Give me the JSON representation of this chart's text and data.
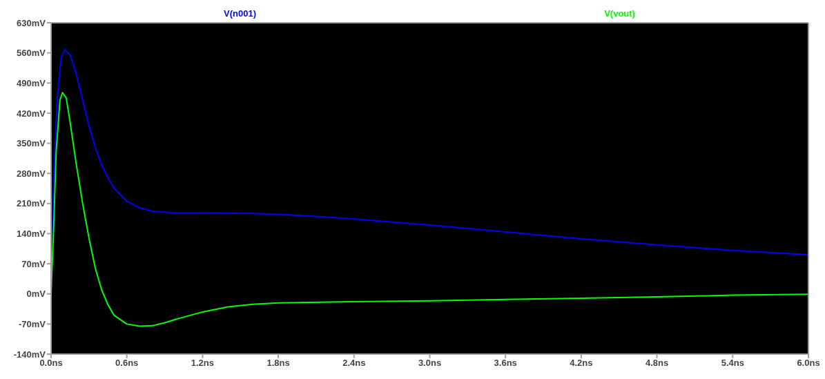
{
  "chart_data": {
    "type": "line",
    "legend": "top",
    "grid": false,
    "marker": "none",
    "line_style": "solid",
    "xlim": [
      0,
      6
    ],
    "xticks": [
      {
        "value": 0,
        "label": "0.0ns"
      },
      {
        "value": 0.6,
        "label": "0.6ns"
      },
      {
        "value": 1.2,
        "label": "1.2ns"
      },
      {
        "value": 1.8,
        "label": "1.8ns"
      },
      {
        "value": 2.4,
        "label": "2.4ns"
      },
      {
        "value": 3.0,
        "label": "3.0ns"
      },
      {
        "value": 3.6,
        "label": "3.6ns"
      },
      {
        "value": 4.2,
        "label": "4.2ns"
      },
      {
        "value": 4.8,
        "label": "4.8ns"
      },
      {
        "value": 5.4,
        "label": "5.4ns"
      },
      {
        "value": 6.0,
        "label": "6.0ns"
      }
    ],
    "ylim": [
      -140,
      630
    ],
    "yticks": [
      {
        "value": -140,
        "label": "-140mV"
      },
      {
        "value": -70,
        "label": "-70mV"
      },
      {
        "value": 0,
        "label": "0mV"
      },
      {
        "value": 70,
        "label": "70mV"
      },
      {
        "value": 140,
        "label": "140mV"
      },
      {
        "value": 210,
        "label": "210mV"
      },
      {
        "value": 280,
        "label": "280mV"
      },
      {
        "value": 350,
        "label": "350mV"
      },
      {
        "value": 420,
        "label": "420mV"
      },
      {
        "value": 490,
        "label": "490mV"
      },
      {
        "value": 560,
        "label": "560mV"
      },
      {
        "value": 630,
        "label": "630mV"
      }
    ],
    "series": [
      {
        "name": "V(n001)",
        "color": "#0000ff",
        "x": [
          0,
          0.02,
          0.05,
          0.08,
          0.11,
          0.15,
          0.2,
          0.25,
          0.3,
          0.35,
          0.4,
          0.45,
          0.5,
          0.6,
          0.7,
          0.8,
          0.9,
          1.0,
          1.2,
          1.6,
          1.8,
          2.1,
          2.4,
          3.0,
          3.6,
          4.2,
          4.8,
          5.4,
          6.0
        ],
        "values": [
          0,
          270,
          460,
          550,
          568,
          555,
          510,
          450,
          390,
          340,
          300,
          270,
          245,
          215,
          200,
          192,
          190,
          188,
          188,
          187,
          185,
          180,
          174,
          160,
          144,
          128,
          114,
          101,
          91
        ]
      },
      {
        "name": "V(vout)",
        "color": "#00ff00",
        "x": [
          0,
          0.02,
          0.04,
          0.07,
          0.09,
          0.12,
          0.15,
          0.2,
          0.25,
          0.3,
          0.35,
          0.4,
          0.45,
          0.5,
          0.6,
          0.7,
          0.8,
          0.9,
          1.0,
          1.2,
          1.4,
          1.6,
          1.8,
          2.4,
          3.0,
          3.6,
          4.2,
          4.8,
          5.4,
          6.0
        ],
        "values": [
          0,
          150,
          330,
          450,
          468,
          455,
          400,
          300,
          210,
          130,
          60,
          10,
          -25,
          -50,
          -70,
          -75,
          -74,
          -67,
          -58,
          -42,
          -30,
          -24,
          -21,
          -18,
          -16,
          -13,
          -10,
          -7,
          -3,
          -1
        ]
      }
    ]
  }
}
